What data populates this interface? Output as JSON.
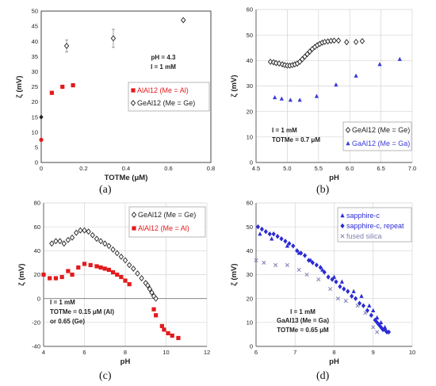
{
  "panel_labels": [
    "(a)",
    "(b)",
    "(c)",
    "(d)"
  ],
  "chart_data": [
    {
      "id": "a",
      "type": "scatter",
      "xlabel": "TOTMe (μM)",
      "ylabel": "ζ (mV)",
      "xlim": [
        0,
        0.8
      ],
      "ylim": [
        0,
        50
      ],
      "xticks": [
        0,
        0.2,
        0.4,
        0.6,
        0.8
      ],
      "xtick_labels": [
        "0",
        "0.2",
        "0.4",
        "0.6",
        "0.8"
      ],
      "yticks": [
        0,
        5,
        10,
        15,
        20,
        25,
        30,
        35,
        40,
        45,
        50
      ],
      "grid": false,
      "legend_position": "middle-right",
      "annotations": [
        "pH = 4.3",
        "I = 1 mM"
      ],
      "series": [
        {
          "name": "AlAl12 (Me = Al)",
          "color": "#e31a1c",
          "marker": "square",
          "x": [
            0.05,
            0.1,
            0.15
          ],
          "y": [
            23,
            25,
            25.5
          ]
        },
        {
          "name": "GeAl12 (Me = Ge)",
          "color": "#222222",
          "marker": "diamond-open",
          "x": [
            0.12,
            0.34,
            0.67
          ],
          "y": [
            38.5,
            41,
            47
          ],
          "err": [
            2,
            3,
            0
          ]
        },
        {
          "name": "",
          "color": "#e31a1c",
          "marker": "circle",
          "x": [
            0
          ],
          "y": [
            7.5
          ],
          "err": [
            0
          ]
        },
        {
          "name": "",
          "color": "#222222",
          "marker": "diamond",
          "x": [
            0
          ],
          "y": [
            15
          ],
          "err": [
            0
          ]
        }
      ]
    },
    {
      "id": "b",
      "type": "scatter",
      "xlabel": "pH",
      "ylabel": "ζ (mV)",
      "xlim": [
        4.5,
        7.0
      ],
      "ylim": [
        0,
        60
      ],
      "xticks": [
        4.5,
        5.0,
        5.5,
        6.0,
        6.5,
        7.0
      ],
      "xtick_labels": [
        "4.5",
        "5.0",
        "5.5",
        "6.0",
        "6.5",
        "7.0"
      ],
      "yticks": [
        0,
        10,
        20,
        30,
        40,
        50,
        60
      ],
      "grid": true,
      "legend_position": "bottom-right",
      "annotations": [
        "I = 1 mM",
        "TOTMe = 0.7 μM"
      ],
      "series": [
        {
          "name": "GeAl12 (Me = Ge)",
          "color": "#222222",
          "marker": "diamond-open",
          "x": [
            4.73,
            4.78,
            4.82,
            4.87,
            4.92,
            4.96,
            5.0,
            5.04,
            5.08,
            5.12,
            5.16,
            5.2,
            5.24,
            5.28,
            5.32,
            5.36,
            5.4,
            5.44,
            5.48,
            5.52,
            5.56,
            5.6,
            5.65,
            5.7,
            5.75,
            5.82,
            5.95,
            6.1,
            6.2
          ],
          "y": [
            39.5,
            39.3,
            39,
            38.8,
            38.5,
            38.2,
            38,
            38,
            38.2,
            38.5,
            38.8,
            39.5,
            40.5,
            41.5,
            42.5,
            43.5,
            44.5,
            45.3,
            46,
            46.5,
            47,
            47.3,
            47.5,
            47.7,
            47.8,
            47.8,
            47.2,
            47.3,
            47.6
          ]
        },
        {
          "name": "GaAl12 (Me = Ga)",
          "color": "#3a3adb",
          "marker": "triangle",
          "x": [
            4.8,
            4.91,
            5.05,
            5.2,
            5.47,
            5.78,
            6.1,
            6.48,
            6.8
          ],
          "y": [
            25.5,
            25,
            24.5,
            24.5,
            26,
            30.5,
            34,
            38.5,
            40.5
          ]
        }
      ]
    },
    {
      "id": "c",
      "type": "scatter",
      "xlabel": "pH",
      "ylabel": "ζ (mV)",
      "xlim": [
        4,
        12
      ],
      "ylim": [
        -40,
        80
      ],
      "xticks": [
        4,
        6,
        8,
        10,
        12
      ],
      "xtick_labels": [
        "4",
        "6",
        "8",
        "10",
        "12"
      ],
      "yticks": [
        -40,
        -20,
        0,
        20,
        40,
        60,
        80
      ],
      "grid": true,
      "legend_position": "top-right",
      "annotations": [
        "I = 1 mM",
        "TOTMe = 0.15 μM (Al)",
        "or 0.65 (Ge)"
      ],
      "series": [
        {
          "name": "GeAl12 (Me = Ge)",
          "color": "#222222",
          "marker": "diamond-open",
          "x": [
            4.4,
            4.6,
            4.8,
            5.0,
            5.2,
            5.4,
            5.6,
            5.8,
            6.0,
            6.2,
            6.4,
            6.6,
            6.8,
            7.0,
            7.2,
            7.4,
            7.6,
            7.8,
            8.0,
            8.2,
            8.4,
            8.6,
            8.8,
            9.0,
            9.1,
            9.2,
            9.3,
            9.4,
            9.5
          ],
          "y": [
            46,
            48,
            48,
            46,
            49,
            51,
            55,
            57,
            57,
            56,
            53,
            50,
            48,
            46,
            44,
            41,
            38,
            35,
            32,
            28,
            25,
            21,
            17,
            13,
            11,
            8,
            5,
            2,
            0
          ]
        },
        {
          "name": "AlAl12 (Me = Al)",
          "color": "#e31a1c",
          "marker": "square",
          "x": [
            4.0,
            4.3,
            4.6,
            4.9,
            5.2,
            5.4,
            5.7,
            6.0,
            6.3,
            6.6,
            6.8,
            7.0,
            7.2,
            7.4,
            7.6,
            7.8,
            8.0,
            8.2,
            9.4,
            9.5,
            9.8,
            9.9,
            10.1,
            10.3,
            10.6
          ],
          "y": [
            20,
            17,
            17,
            18,
            23,
            20,
            26,
            29,
            28,
            27,
            26,
            25,
            24,
            22,
            20,
            18,
            15,
            12,
            -9,
            -14,
            -23,
            -26,
            -29,
            -31,
            -33
          ]
        }
      ]
    },
    {
      "id": "d",
      "type": "scatter",
      "xlabel": "pH",
      "ylabel": "ζ (mV)",
      "xlim": [
        6,
        10
      ],
      "ylim": [
        0,
        60
      ],
      "xticks": [
        6,
        7,
        8,
        9,
        10
      ],
      "xtick_labels": [
        "6",
        "7",
        "8",
        "9",
        "10"
      ],
      "yticks": [
        0,
        10,
        20,
        30,
        40,
        50,
        60
      ],
      "grid": true,
      "legend_position": "top-right",
      "annotations": [
        "I = 1 mM",
        "GaAl13 (Me = Ga)",
        "TOTMe = 0.65 μM"
      ],
      "series": [
        {
          "name": "sapphire-c",
          "color": "#2b2bd6",
          "marker": "triangle",
          "x": [
            6.1,
            6.4,
            6.8,
            7.1,
            7.4,
            7.7,
            8.0,
            8.2,
            8.5,
            8.7,
            8.9,
            9.0,
            9.1,
            9.2,
            9.3
          ],
          "y": [
            47,
            45,
            42,
            39,
            36,
            32,
            29,
            27,
            23,
            21,
            17,
            15,
            12,
            10,
            8
          ]
        },
        {
          "name": "sapphire-c, repeat",
          "color": "#2b2bd6",
          "marker": "diamond",
          "x": [
            6.05,
            6.15,
            6.25,
            6.35,
            6.45,
            6.55,
            6.65,
            6.75,
            6.85,
            6.95,
            7.05,
            7.15,
            7.25,
            7.35,
            7.45,
            7.55,
            7.65,
            7.75,
            7.85,
            7.95,
            8.05,
            8.15,
            8.25,
            8.35,
            8.45,
            8.55,
            8.65,
            8.75,
            8.85,
            8.95,
            9.05,
            9.1,
            9.15,
            9.2,
            9.25,
            9.3,
            9.35,
            9.4
          ],
          "y": [
            50,
            49,
            48,
            47,
            47,
            46,
            45,
            44,
            43,
            42,
            40,
            39,
            38,
            36,
            35,
            34,
            33,
            31,
            29,
            28,
            27,
            25,
            24,
            23,
            21,
            20,
            18,
            17,
            15,
            13,
            11,
            10,
            9,
            8,
            7,
            7,
            6,
            6
          ]
        },
        {
          "name": "fused silica",
          "color": "#7f7fb3",
          "marker": "x",
          "x": [
            6.0,
            6.2,
            6.5,
            6.8,
            7.1,
            7.3,
            7.6,
            7.9,
            8.1,
            8.3,
            8.6,
            8.8,
            9.0,
            9.1
          ],
          "y": [
            36,
            35,
            34,
            34,
            32,
            30,
            28,
            24,
            20,
            19,
            17,
            14,
            8,
            6
          ]
        }
      ]
    }
  ]
}
